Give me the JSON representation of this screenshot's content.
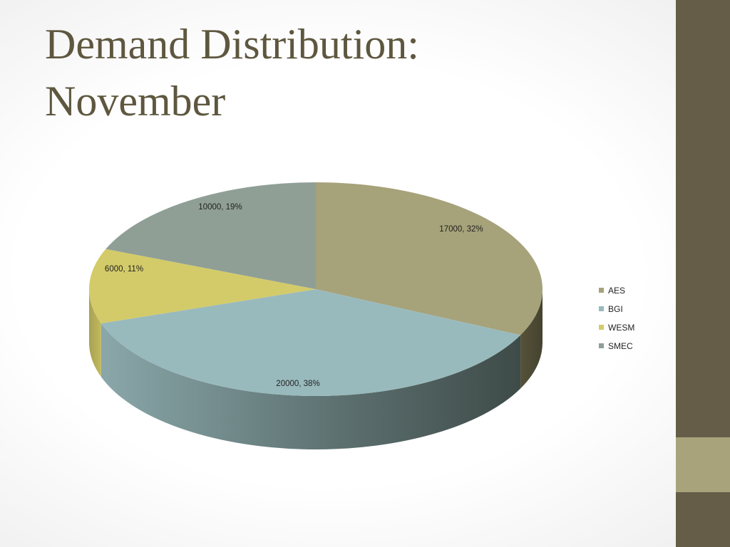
{
  "slide": {
    "title_line1": "Demand Distribution:",
    "title_line2": "November"
  },
  "chart_data": {
    "type": "pie",
    "title": "Demand Distribution: November",
    "style": "3d",
    "legend_position": "right",
    "categories": [
      "AES",
      "BGI",
      "WESM",
      "SMEC"
    ],
    "values": [
      17000,
      20000,
      6000,
      10000
    ],
    "percentages": [
      32,
      38,
      11,
      19
    ],
    "labels": [
      "17000, 32%",
      "20000, 38%",
      "6000, 11%",
      "10000, 19%"
    ],
    "colors": [
      "#a6a27a",
      "#99babd",
      "#d3cb69",
      "#8f9f96"
    ]
  },
  "theme": {
    "sidebar": "#655d47",
    "accent": "#a9a37b",
    "title_color": "#5e573f"
  }
}
